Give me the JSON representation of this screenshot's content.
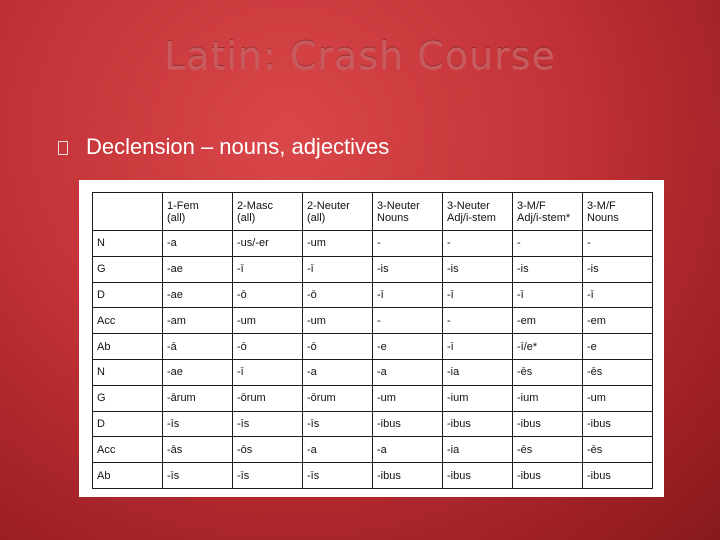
{
  "slide": {
    "title": "Latin: Crash Course",
    "bullet": "Declension – nouns, adjectives"
  },
  "table": {
    "headers": [
      [
        "",
        ""
      ],
      [
        "1-Fem",
        "(all)"
      ],
      [
        "2-Masc",
        "(all)"
      ],
      [
        "2-Neuter",
        "(all)"
      ],
      [
        "3-Neuter",
        "Nouns"
      ],
      [
        "3-Neuter",
        "Adj/i-stem"
      ],
      [
        "3-M/F",
        "Adj/i-stem*"
      ],
      [
        "3-M/F",
        "Nouns"
      ]
    ],
    "rows": [
      [
        "N",
        "-a",
        "-us/-er",
        "-um",
        "-",
        "-",
        "-",
        "-"
      ],
      [
        "G",
        "-ae",
        "-ī",
        "-ī",
        "-is",
        "-is",
        "-is",
        "-is"
      ],
      [
        "D",
        "-ae",
        "-ō",
        "-ō",
        "-ī",
        "-ī",
        "-ī",
        "-ī"
      ],
      [
        "Acc",
        "-am",
        "-um",
        "-um",
        "-",
        "-",
        "-em",
        "-em"
      ],
      [
        "Ab",
        "-ā",
        "-ō",
        "-ō",
        "-e",
        "-ī",
        "-ī/e*",
        "-e"
      ],
      [
        "N",
        "-ae",
        "-ī",
        "-a",
        "-a",
        "-ia",
        "-ēs",
        "-ēs"
      ],
      [
        "G",
        "-ārum",
        "-ōrum",
        "-ōrum",
        "-um",
        "-ium",
        "-ium",
        "-um"
      ],
      [
        "D",
        "-īs",
        "-īs",
        "-īs",
        "-ibus",
        "-ibus",
        "-ibus",
        "-ibus"
      ],
      [
        "Acc",
        "-ās",
        "-ōs",
        "-a",
        "-a",
        "-ia",
        "-ēs",
        "-ēs"
      ],
      [
        "Ab",
        "-īs",
        "-īs",
        "-īs",
        "-ibus",
        "-ibus",
        "-ibus",
        "-ibus"
      ]
    ]
  }
}
